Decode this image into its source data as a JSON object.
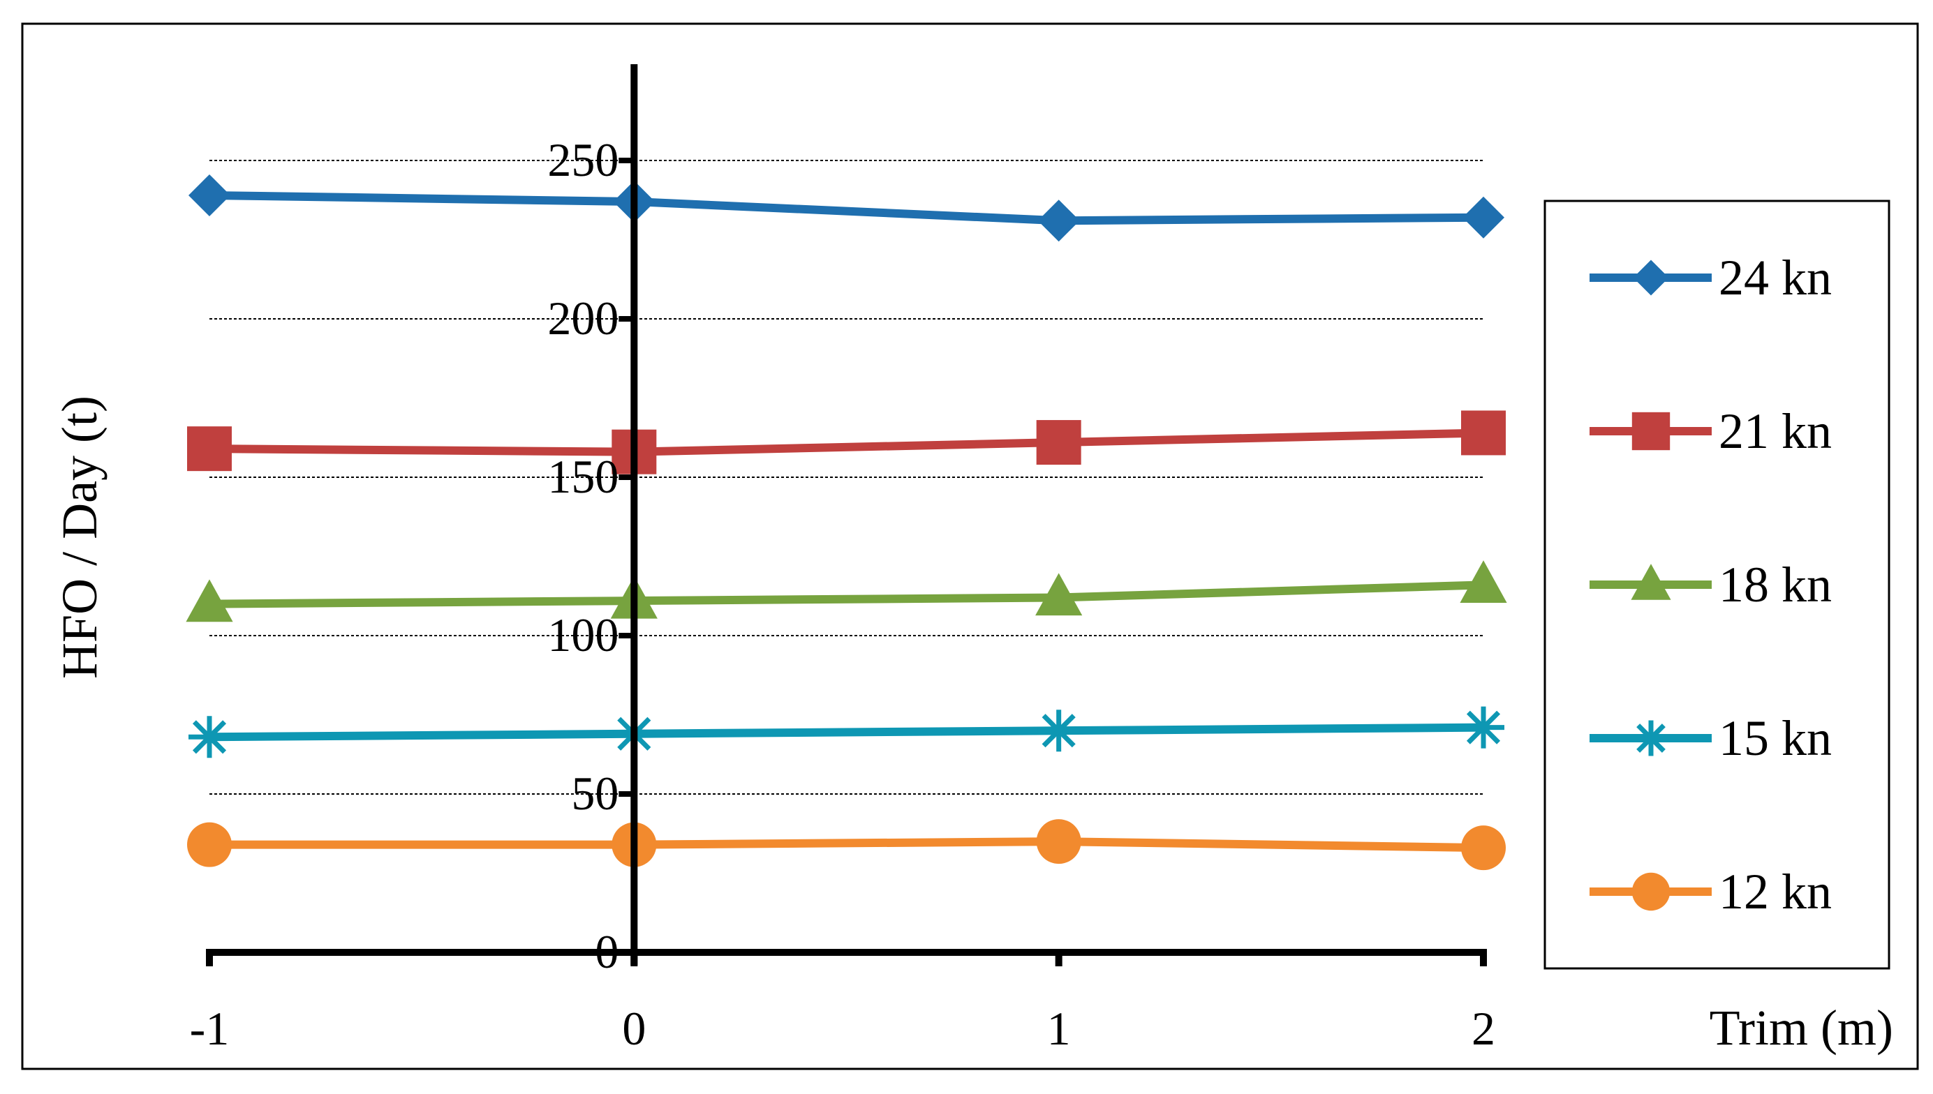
{
  "chart_data": {
    "type": "line",
    "title": "",
    "xlabel": "Trim (m)",
    "ylabel": "HFO / Day (t)",
    "x": [
      -1,
      0,
      1,
      2
    ],
    "x_tick_labels": [
      "-1",
      "0",
      "1",
      "2"
    ],
    "y_ticks": [
      0,
      50,
      100,
      150,
      200,
      250
    ],
    "y_tick_labels": [
      "0",
      "50",
      "100",
      "150",
      "200",
      "250"
    ],
    "xlim": [
      -1,
      2
    ],
    "ylim": [
      0,
      280
    ],
    "grid": "horizontal dashed",
    "legend_position": "right",
    "series": [
      {
        "name": "24 kn",
        "color": "#1F6FAF",
        "marker": "diamond",
        "values": [
          239,
          237,
          231,
          232
        ]
      },
      {
        "name": "21 kn",
        "color": "#C0403E",
        "marker": "square",
        "values": [
          159,
          158,
          161,
          164
        ]
      },
      {
        "name": "18 kn",
        "color": "#77A33F",
        "marker": "triangle",
        "values": [
          110,
          111,
          112,
          116
        ]
      },
      {
        "name": "15 kn",
        "color": "#0E97B3",
        "marker": "star",
        "values": [
          68,
          69,
          70,
          71
        ]
      },
      {
        "name": "12 kn",
        "color": "#F28A2E",
        "marker": "circle",
        "values": [
          34,
          34,
          35,
          33
        ]
      }
    ]
  }
}
